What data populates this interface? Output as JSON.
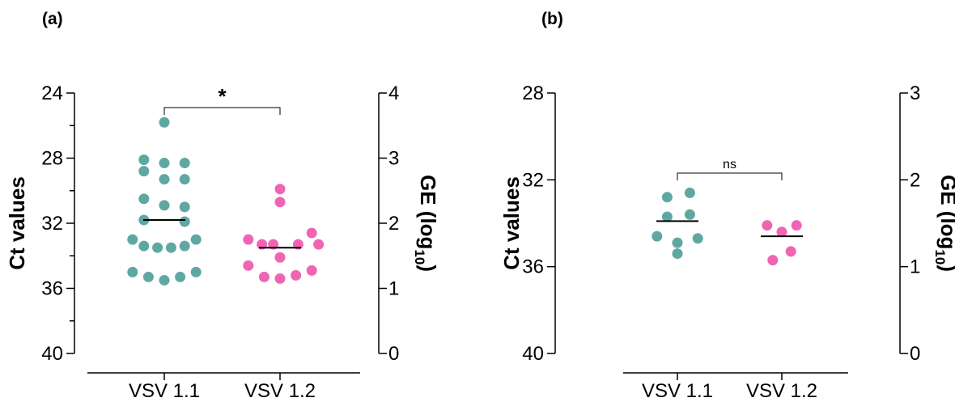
{
  "colors": {
    "vsv11": "#5fa8a2",
    "vsv12": "#f064b4"
  },
  "chart_data": [
    {
      "type": "scatter",
      "panel_label": "(a)",
      "categories": [
        "VSV 1.1",
        "VSV 1.2"
      ],
      "ylabel": "Ct values",
      "y2label_main": "GE (log",
      "y2label_sub": "10",
      "y2label_end": ")",
      "ylim": [
        24,
        40
      ],
      "yticks": [
        "24",
        "28",
        "32",
        "36",
        "40"
      ],
      "y2lim": [
        0,
        4
      ],
      "y2ticks": [
        "4",
        "3",
        "2",
        "1",
        "0"
      ],
      "y_reversed": true,
      "significance": "*",
      "series": [
        {
          "category": "VSV 1.1",
          "color_key": "vsv11",
          "mean": 31.8,
          "points": [
            [
              0,
              25.8
            ],
            [
              -0.9,
              28.1
            ],
            [
              0.9,
              28.3
            ],
            [
              0,
              28.3
            ],
            [
              -0.9,
              28.8
            ],
            [
              0,
              29.3
            ],
            [
              0.9,
              29.3
            ],
            [
              -0.9,
              30.5
            ],
            [
              0,
              30.9
            ],
            [
              0.9,
              31
            ],
            [
              -0.9,
              31.8
            ],
            [
              0.9,
              31.9
            ],
            [
              -1.4,
              33
            ],
            [
              1.4,
              33
            ],
            [
              -0.9,
              33.4
            ],
            [
              0.9,
              33.4
            ],
            [
              -0.3,
              33.5
            ],
            [
              0.3,
              33.5
            ],
            [
              -1.4,
              35
            ],
            [
              1.4,
              35
            ],
            [
              -0.7,
              35.3
            ],
            [
              0.7,
              35.3
            ],
            [
              0,
              35.5
            ]
          ]
        },
        {
          "category": "VSV 1.2",
          "color_key": "vsv12",
          "mean": 33.5,
          "points": [
            [
              0,
              29.9
            ],
            [
              0,
              30.7
            ],
            [
              1.4,
              32.6
            ],
            [
              -1.4,
              33
            ],
            [
              -0.8,
              33.3
            ],
            [
              0.8,
              33.3
            ],
            [
              -0.3,
              33.3
            ],
            [
              1.7,
              33.3
            ],
            [
              0,
              34.1
            ],
            [
              -1.4,
              34.6
            ],
            [
              1.4,
              34.9
            ],
            [
              -0.7,
              35.3
            ],
            [
              0.7,
              35.2
            ],
            [
              0,
              35.4
            ]
          ]
        }
      ]
    },
    {
      "type": "scatter",
      "panel_label": "(b)",
      "categories": [
        "VSV 1.1",
        "VSV 1.2"
      ],
      "ylabel": "Ct values",
      "y2label_main": "GE (log",
      "y2label_sub": "10",
      "y2label_end": ")",
      "ylim": [
        28,
        40
      ],
      "yticks": [
        "28",
        "32",
        "36",
        "40"
      ],
      "y2lim": [
        0,
        3
      ],
      "y2ticks": [
        "3",
        "2",
        "1",
        "0"
      ],
      "y_reversed": true,
      "significance": "ns",
      "series": [
        {
          "category": "VSV 1.1",
          "color_key": "vsv11",
          "mean": 33.9,
          "points": [
            [
              1.1,
              32.6
            ],
            [
              -0.9,
              32.8
            ],
            [
              -0.9,
              33.7
            ],
            [
              1.1,
              33.6
            ],
            [
              -1.8,
              34.6
            ],
            [
              1.8,
              34.7
            ],
            [
              0,
              34.9
            ],
            [
              0,
              35.4
            ]
          ]
        },
        {
          "category": "VSV 1.2",
          "color_key": "vsv12",
          "mean": 34.6,
          "points": [
            [
              -1.3,
              34.1
            ],
            [
              1.3,
              34.1
            ],
            [
              0,
              34.4
            ],
            [
              0.8,
              35.3
            ],
            [
              -0.8,
              35.7
            ]
          ]
        }
      ]
    }
  ]
}
